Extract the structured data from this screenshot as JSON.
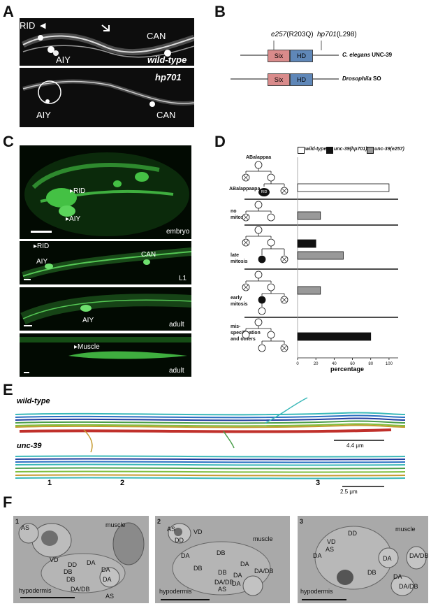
{
  "panels": {
    "A": "A",
    "B": "B",
    "C": "C",
    "D": "D",
    "E": "E",
    "F": "F"
  },
  "panelA": {
    "top": {
      "rid": "RID",
      "can": "CAN",
      "aiy": "AIY",
      "genotype": "wild-type"
    },
    "bottom": {
      "aiy": "AIY",
      "can": "CAN",
      "genotype": "hp701"
    }
  },
  "panelB": {
    "mut1": "e257",
    "mut1_change": "(R203Q)",
    "mut2": "hp701",
    "mut2_change": "(L298)",
    "six": "Six",
    "hd": "HD",
    "protein1_species": "C. elegans",
    "protein1_name": " UNC-39",
    "protein2_species": "Drosophila",
    "protein2_name": " SO",
    "colors": {
      "six": "#d98b8b",
      "hd": "#5f87b8"
    }
  },
  "panelC": {
    "embryo": {
      "rid": "RID",
      "aiy": "AIY",
      "stage": "embryo"
    },
    "l1": {
      "rid": "RID",
      "aiy": "AIY",
      "can": "CAN",
      "stage": "L1"
    },
    "adult1": {
      "aiy": "AIY",
      "stage": "adult"
    },
    "adult2": {
      "muscle": "Muscle",
      "stage": "adult"
    }
  },
  "panelD": {
    "legend": {
      "wt": "wild-type",
      "hp701": "unc-39(hp701)",
      "e257": "unc-39(e257)"
    },
    "lineage_top": "ABalappaa",
    "lineage_bottom": "ABalappaapa",
    "rid": "RID",
    "row_labels": {
      "no_mitosis_1": "no",
      "no_mitosis_2": "mitosis",
      "late_1": "late",
      "late_2": "mitosis",
      "early_1": "early",
      "early_2": "mitosis",
      "mis_1": "mis-",
      "mis_2": "specification",
      "mis_3": "and others"
    },
    "xlabel": "percentage",
    "ticks": [
      "0",
      "20",
      "40",
      "60",
      "80",
      "100"
    ]
  },
  "chart_data": {
    "type": "bar",
    "orientation": "horizontal",
    "categories": [
      "wild-type RID",
      "no mitosis",
      "late mitosis",
      "early mitosis",
      "mis-specification and others"
    ],
    "series": [
      {
        "name": "wild-type",
        "color": "#ffffff",
        "values": [
          100,
          0,
          0,
          0,
          0
        ]
      },
      {
        "name": "unc-39(hp701)",
        "color": "#111111",
        "values": [
          0,
          0,
          20,
          0,
          80
        ]
      },
      {
        "name": "unc-39(e257)",
        "color": "#999999",
        "values": [
          0,
          25,
          50,
          25,
          0
        ]
      }
    ],
    "xlabel": "percentage",
    "xlim": [
      0,
      110
    ],
    "xticks": [
      0,
      20,
      40,
      60,
      80,
      100
    ]
  },
  "panelE": {
    "wt": "wild-type",
    "mut": "unc-39",
    "scale1": "4.4 μm",
    "scale2": "2.5 μm",
    "n1": "1",
    "n2": "2",
    "n3": "3"
  },
  "panelF": {
    "img1": {
      "num": "1",
      "labels": [
        "AS",
        "muscle",
        "VD",
        "DD",
        "DA",
        "DA",
        "DB",
        "DB",
        "DA",
        "DA/DB",
        "AS",
        "hypodermis"
      ]
    },
    "img2": {
      "num": "2",
      "labels": [
        "AS",
        "VD",
        "DD",
        "muscle",
        "DA",
        "DB",
        "DB",
        "DA",
        "DA/DB",
        "DB",
        "DA",
        "DA/DB",
        "AS",
        "DA",
        "hypodermis"
      ]
    },
    "img3": {
      "num": "3",
      "labels": [
        "VD",
        "DD",
        "muscle",
        "AS",
        "DA",
        "DA",
        "DA/DB",
        "DB",
        "DA",
        "DA/DB",
        "hypodermis"
      ]
    }
  }
}
